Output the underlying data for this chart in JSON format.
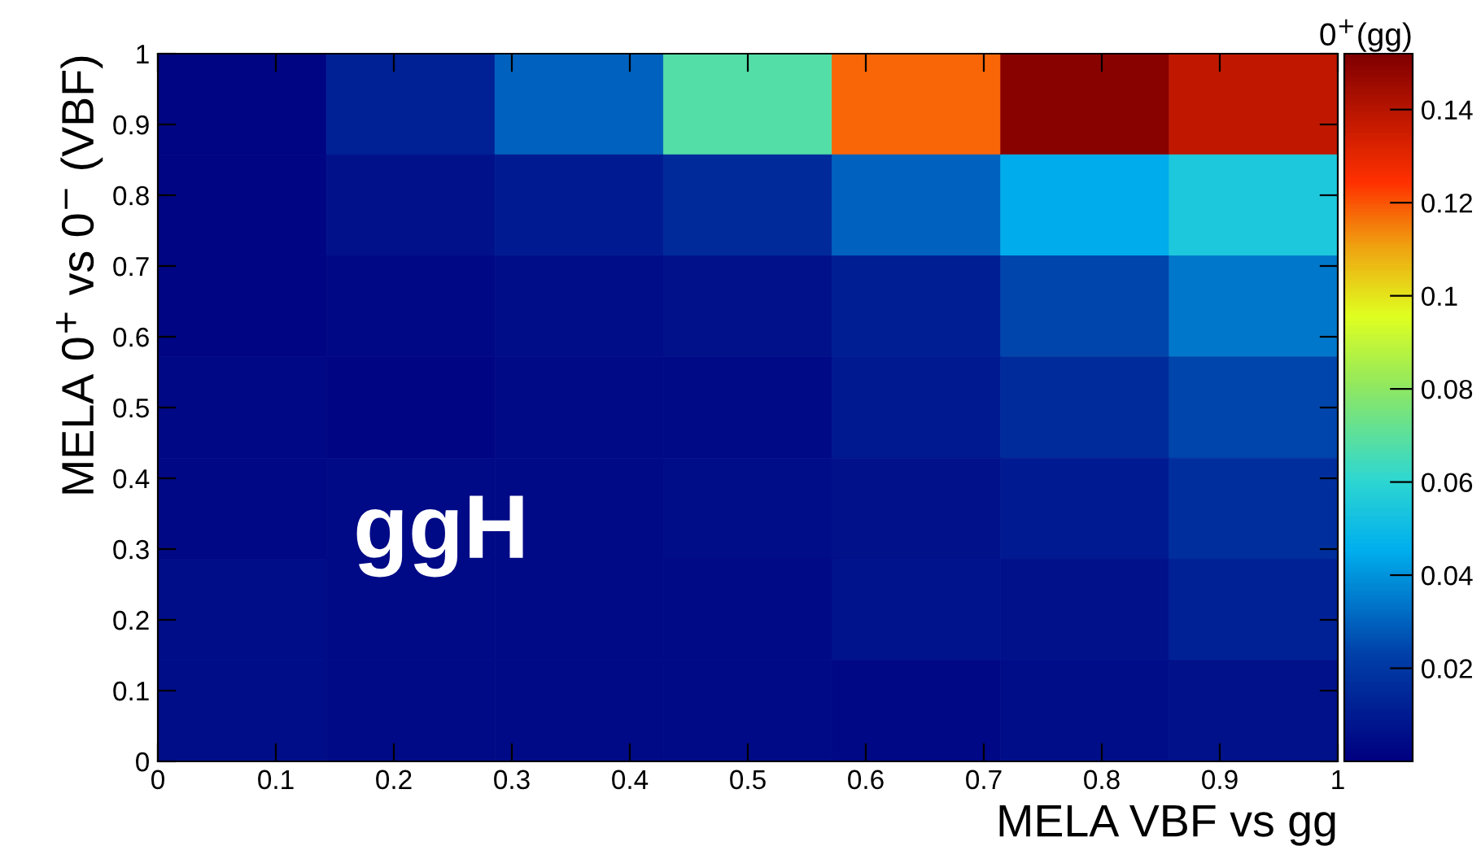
{
  "chart_data": {
    "type": "heatmap",
    "title": "0$^{+}$(gg)",
    "xlabel": "MELA VBF vs gg",
    "ylabel": "MELA 0$^{+}$ vs 0$^{−}$ (VBF)",
    "annotations": [
      "ggH"
    ],
    "x": [
      0.0714,
      0.2143,
      0.3571,
      0.5,
      0.6429,
      0.7857,
      0.9286
    ],
    "y": [
      0.9286,
      0.7857,
      0.6429,
      0.5,
      0.3571,
      0.2143,
      0.0714
    ],
    "cells": [
      [
        0.002,
        0.012,
        0.03,
        0.068,
        0.118,
        0.15,
        0.138
      ],
      [
        0.002,
        0.006,
        0.01,
        0.015,
        0.03,
        0.045,
        0.055
      ],
      [
        0.002,
        0.003,
        0.005,
        0.006,
        0.011,
        0.024,
        0.034
      ],
      [
        0.003,
        0.002,
        0.004,
        0.004,
        0.009,
        0.016,
        0.024
      ],
      [
        0.003,
        0.004,
        0.004,
        0.005,
        0.006,
        0.01,
        0.017
      ],
      [
        0.005,
        0.004,
        0.004,
        0.004,
        0.007,
        0.006,
        0.012
      ],
      [
        0.005,
        0.004,
        0.004,
        0.004,
        0.003,
        0.005,
        0.006
      ]
    ],
    "clim": [
      0,
      0.152
    ],
    "cticks": [
      0.02,
      0.04,
      0.06,
      0.08,
      0.1,
      0.12,
      0.14
    ],
    "xlim": [
      0,
      1
    ],
    "xticks": [
      0,
      0.1,
      0.2,
      0.3,
      0.4,
      0.5,
      0.6,
      0.7,
      0.8,
      0.9,
      1
    ],
    "ylim": [
      0,
      1
    ],
    "yticks": [
      0,
      0.1,
      0.2,
      0.3,
      0.4,
      0.5,
      0.6,
      0.7,
      0.8,
      0.9,
      1
    ],
    "grid": false
  }
}
